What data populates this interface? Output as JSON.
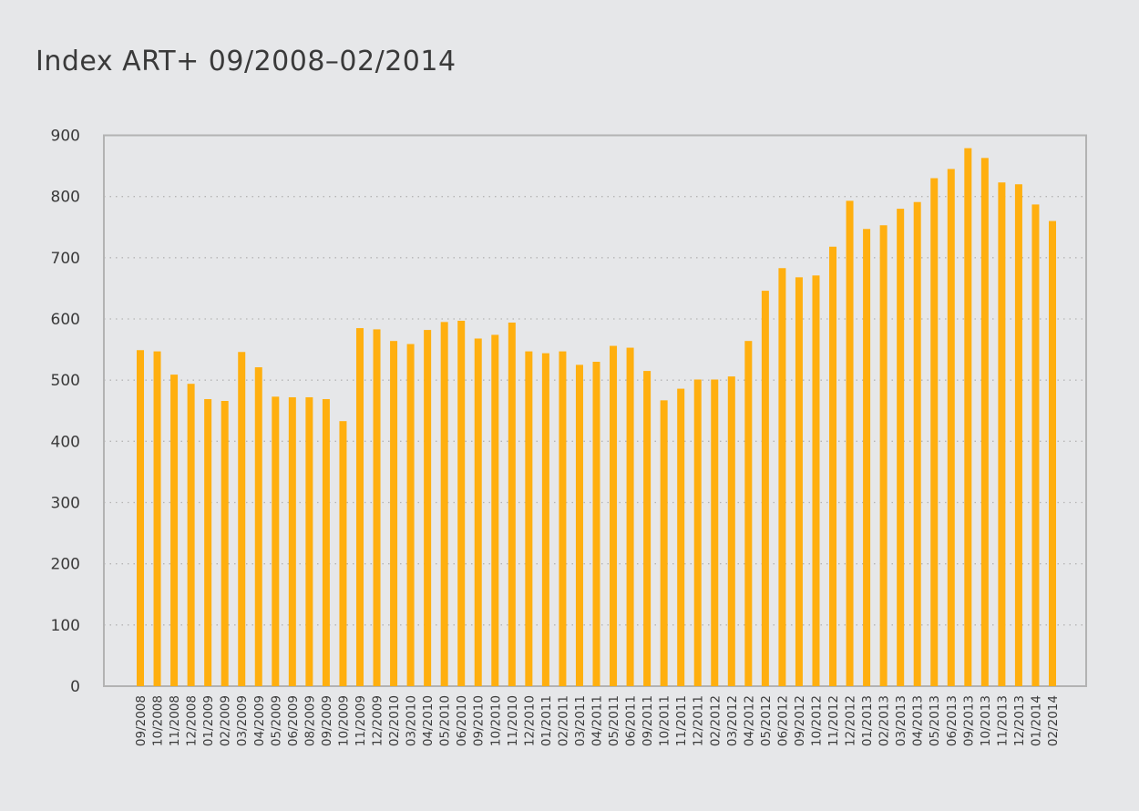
{
  "chart_data": {
    "type": "bar",
    "title": "Index ART+ 09/2008–02/2014",
    "xlabel": "",
    "ylabel": "",
    "ylim": [
      0,
      900
    ],
    "yticks": [
      0,
      100,
      200,
      300,
      400,
      500,
      600,
      700,
      800,
      900
    ],
    "grid": true,
    "legend": "none",
    "bar_color": "#ffaf0f",
    "categories": [
      "09/2008",
      "10/2008",
      "11/2008",
      "12/2008",
      "01/2009",
      "02/2009",
      "03/2009",
      "04/2009",
      "05/2009",
      "06/2009",
      "08/2009",
      "09/2009",
      "10/2009",
      "11/2009",
      "12/2009",
      "02/2010",
      "03/2010",
      "04/2010",
      "05/2010",
      "06/2010",
      "09/2010",
      "10/2010",
      "11/2010",
      "12/2010",
      "01/2011",
      "02/2011",
      "03/2011",
      "04/2011",
      "05/2011",
      "06/2011",
      "09/2011",
      "10/2011",
      "11/2011",
      "12/2011",
      "02/2012",
      "03/2012",
      "04/2012",
      "05/2012",
      "06/2012",
      "09/2012",
      "10/2012",
      "11/2012",
      "12/2012",
      "01/2013",
      "02/2013",
      "03/2013",
      "04/2013",
      "05/2013",
      "06/2013",
      "09/2013",
      "10/2013",
      "11/2013",
      "12/2013",
      "01/2014",
      "02/2014"
    ],
    "values": [
      549,
      547,
      509,
      494,
      469,
      466,
      546,
      521,
      473,
      472,
      472,
      469,
      433,
      585,
      583,
      564,
      559,
      582,
      595,
      597,
      568,
      574,
      594,
      547,
      544,
      547,
      525,
      530,
      556,
      553,
      515,
      467,
      486,
      501,
      501,
      506,
      564,
      646,
      683,
      668,
      671,
      718,
      793,
      747,
      753,
      780,
      791,
      830,
      845,
      879,
      863,
      823,
      820,
      787,
      760
    ]
  }
}
